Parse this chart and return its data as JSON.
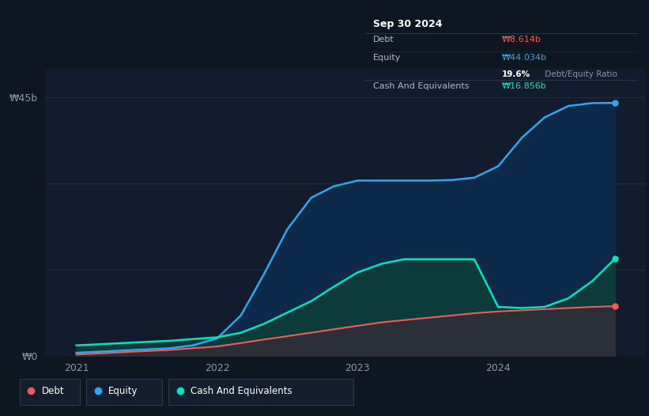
{
  "bg_color": "#0e1621",
  "plot_bg_color": "#0e1621",
  "chart_area_color": "#131c2e",
  "grid_color": "#1e2d42",
  "ylim": [
    0,
    50
  ],
  "equity_color": "#2da8f0",
  "debt_color": "#ef5b5b",
  "cash_color": "#00e5c0",
  "equity_fill": "#0d2a4a",
  "cash_fill": "#0d3a3a",
  "debt_fill": "#2a2f38",
  "time": [
    2021.0,
    2021.17,
    2021.33,
    2021.5,
    2021.67,
    2021.83,
    2022.0,
    2022.17,
    2022.33,
    2022.5,
    2022.67,
    2022.83,
    2023.0,
    2023.17,
    2023.33,
    2023.5,
    2023.67,
    2023.83,
    2024.0,
    2024.17,
    2024.33,
    2024.5,
    2024.67,
    2024.83
  ],
  "equity": [
    0.5,
    0.7,
    0.9,
    1.1,
    1.3,
    1.8,
    3.0,
    7.0,
    14.0,
    22.0,
    27.5,
    29.5,
    30.5,
    30.5,
    30.5,
    30.5,
    30.6,
    31.0,
    33.0,
    38.0,
    41.5,
    43.5,
    44.0,
    44.034
  ],
  "cash": [
    1.8,
    2.0,
    2.2,
    2.4,
    2.6,
    2.9,
    3.2,
    4.0,
    5.5,
    7.5,
    9.5,
    12.0,
    14.5,
    16.0,
    16.8,
    16.8,
    16.8,
    16.8,
    8.5,
    8.3,
    8.5,
    10.0,
    13.0,
    16.856
  ],
  "debt": [
    0.2,
    0.4,
    0.6,
    0.8,
    1.0,
    1.3,
    1.6,
    2.2,
    2.8,
    3.4,
    4.0,
    4.6,
    5.2,
    5.8,
    6.2,
    6.6,
    7.0,
    7.4,
    7.7,
    7.9,
    8.1,
    8.3,
    8.5,
    8.614
  ],
  "x_ticks": [
    2021,
    2022,
    2023,
    2024
  ],
  "ylabel_45b": "₩45b",
  "ylabel_0": "₩0",
  "tooltip_date": "Sep 30 2024",
  "tooltip_debt_label": "Debt",
  "tooltip_debt_value": "₩8.614b",
  "tooltip_equity_label": "Equity",
  "tooltip_equity_value": "₩44.034b",
  "tooltip_ratio_bold": "19.6%",
  "tooltip_ratio_rest": " Debt/Equity Ratio",
  "tooltip_cash_label": "Cash And Equivalents",
  "tooltip_cash_value": "₩16.856b",
  "legend_items": [
    "Debt",
    "Equity",
    "Cash And Equivalents"
  ],
  "legend_colors": [
    "#ef5b5b",
    "#2da8f0",
    "#00e5c0"
  ]
}
